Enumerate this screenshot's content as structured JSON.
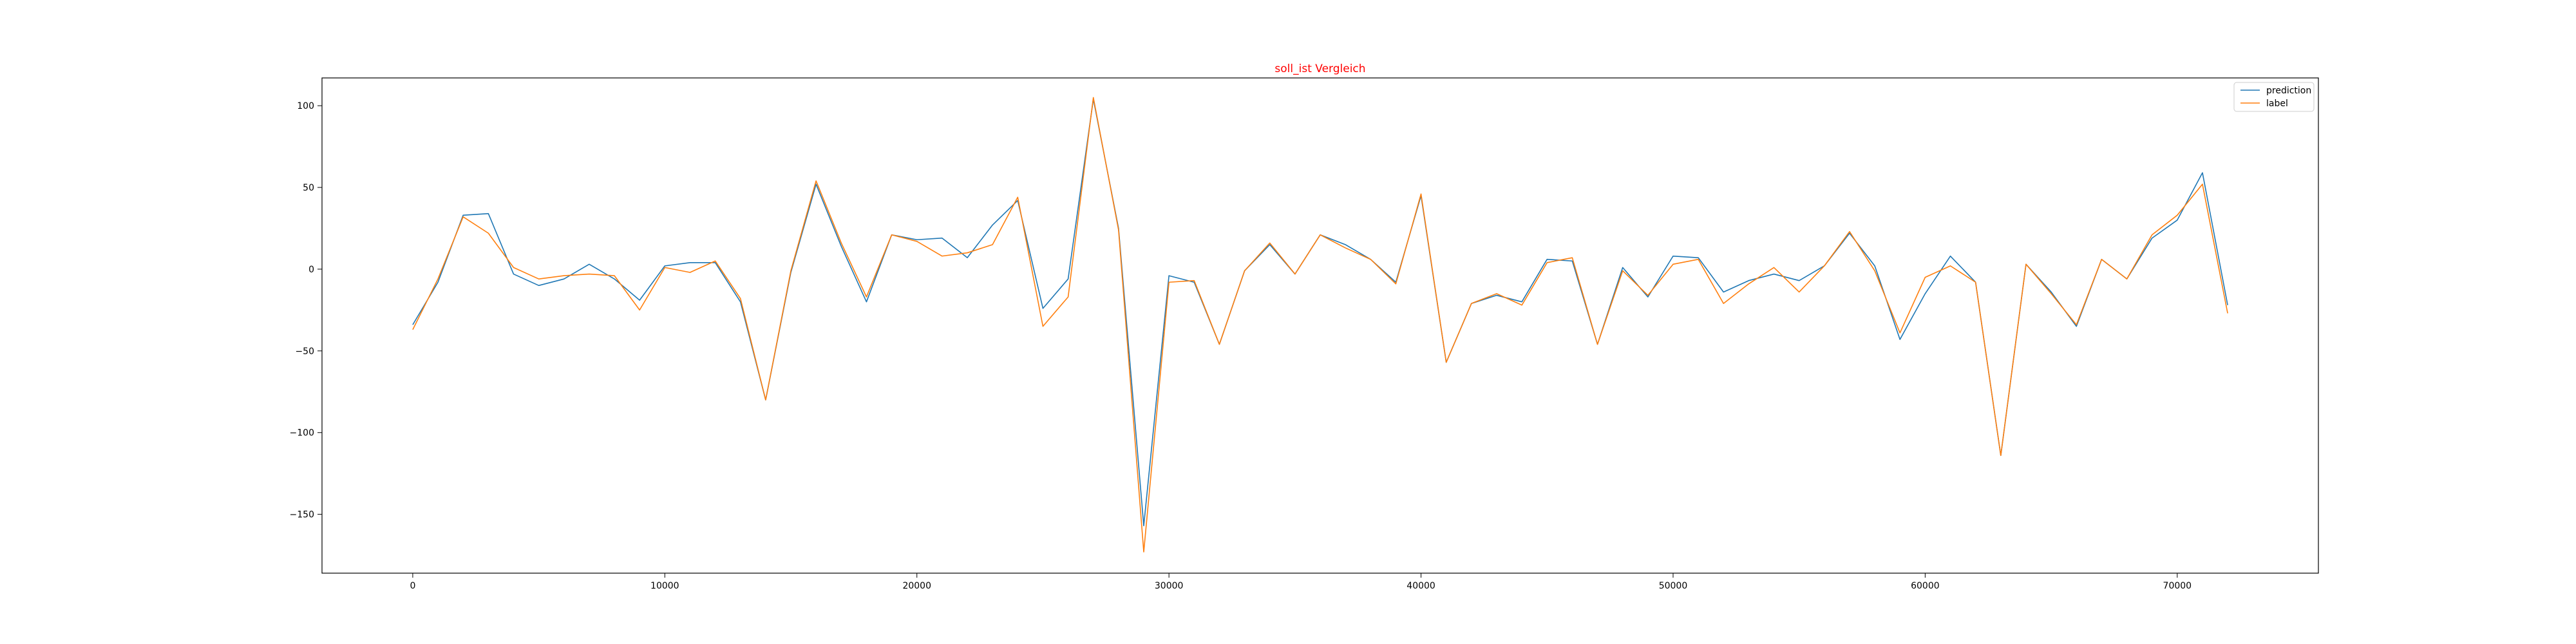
{
  "chart_data": {
    "type": "line",
    "title": "soll_ist Vergleich",
    "title_color": "#ff0000",
    "xlabel": "",
    "ylabel": "",
    "xlim": [
      -3600,
      75600
    ],
    "ylim": [
      -186,
      117
    ],
    "xticks": [
      0,
      10000,
      20000,
      30000,
      40000,
      50000,
      60000,
      70000
    ],
    "yticks": [
      -150,
      -100,
      -50,
      0,
      50,
      100
    ],
    "grid": false,
    "legend_position": "upper right",
    "x": [
      0,
      1000,
      2000,
      3000,
      4000,
      5000,
      6000,
      7000,
      8000,
      9000,
      10000,
      11000,
      12000,
      13000,
      14000,
      15000,
      16000,
      17000,
      18000,
      19000,
      20000,
      21000,
      22000,
      23000,
      24000,
      25000,
      26000,
      27000,
      28000,
      29000,
      30000,
      31000,
      32000,
      33000,
      34000,
      35000,
      36000,
      37000,
      38000,
      39000,
      40000,
      41000,
      42000,
      43000,
      44000,
      45000,
      46000,
      47000,
      48000,
      49000,
      50000,
      51000,
      52000,
      53000,
      54000,
      55000,
      56000,
      57000,
      58000,
      59000,
      60000,
      61000,
      62000,
      63000,
      64000,
      65000,
      66000,
      67000,
      68000,
      69000,
      70000,
      71000,
      72000
    ],
    "series": [
      {
        "name": "prediction",
        "color": "#1f77b4",
        "values": [
          -34,
          -8,
          33,
          34,
          -3,
          -10,
          -6,
          3,
          -6,
          -19,
          2,
          4,
          4,
          -20,
          -80,
          -2,
          52,
          14,
          -20,
          21,
          18,
          19,
          7,
          27,
          42,
          -24,
          -6,
          104,
          25,
          -157,
          -4,
          -8,
          -46,
          -1,
          15,
          -3,
          21,
          15,
          6,
          -8,
          45,
          -57,
          -21,
          -16,
          -20,
          6,
          5,
          -46,
          1,
          -17,
          8,
          7,
          -14,
          -7,
          -3,
          -7,
          2,
          22,
          2,
          -43,
          -15,
          8,
          -8,
          -114,
          3,
          -14,
          -35,
          6,
          -6,
          19,
          30,
          59,
          -22
        ]
      },
      {
        "name": "label",
        "color": "#ff7f0e",
        "values": [
          -37,
          -6,
          32,
          22,
          1,
          -6,
          -4,
          -3,
          -4,
          -25,
          1,
          -2,
          5,
          -18,
          -80,
          -1,
          54,
          16,
          -17,
          21,
          17,
          8,
          10,
          15,
          44,
          -35,
          -17,
          105,
          24,
          -173,
          -8,
          -7,
          -46,
          -1,
          16,
          -3,
          21,
          13,
          6,
          -9,
          46,
          -57,
          -21,
          -15,
          -22,
          4,
          7,
          -46,
          -1,
          -16,
          3,
          6,
          -21,
          -9,
          1,
          -14,
          2,
          23,
          -1,
          -39,
          -5,
          2,
          -8,
          -114,
          3,
          -15,
          -34,
          6,
          -6,
          21,
          33,
          52,
          -27
        ]
      }
    ]
  }
}
